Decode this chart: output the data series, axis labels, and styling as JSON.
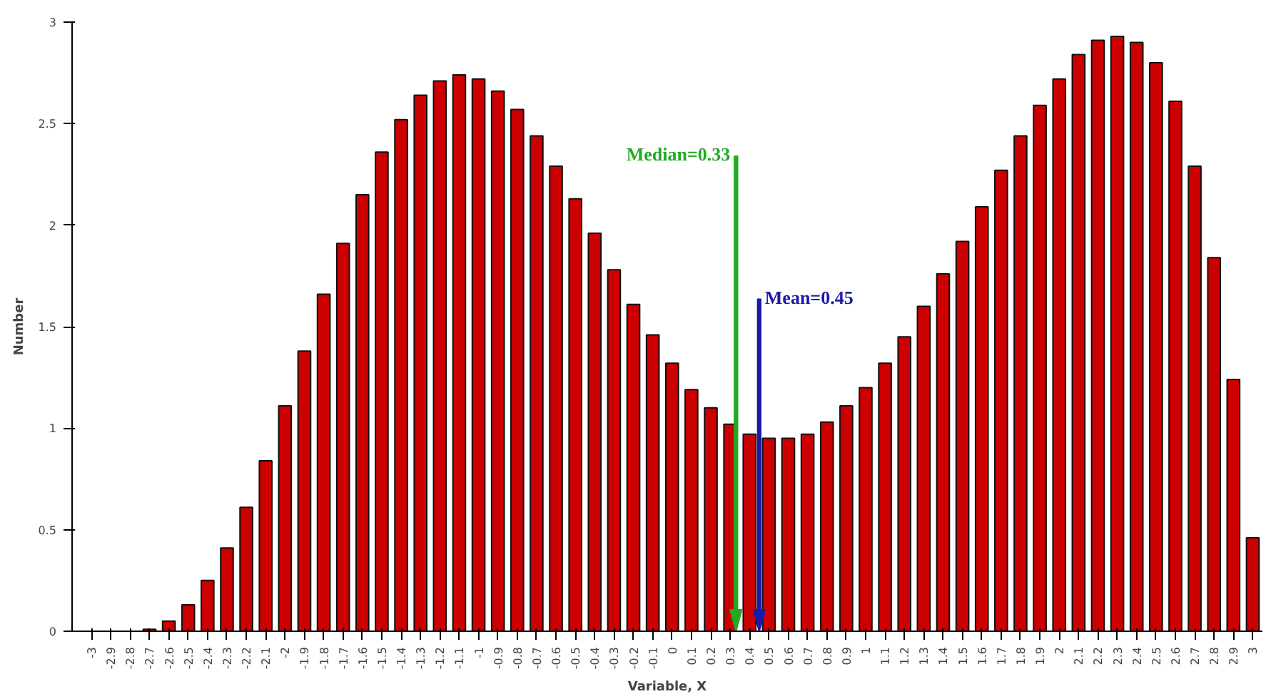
{
  "chart_data": {
    "type": "bar",
    "xlabel": "Variable, X",
    "ylabel": "Number",
    "x": [
      -3,
      -2.9,
      -2.8,
      -2.7,
      -2.6,
      -2.5,
      -2.4,
      -2.3,
      -2.2,
      -2.1,
      -2,
      -1.9,
      -1.8,
      -1.7,
      -1.6,
      -1.5,
      -1.4,
      -1.3,
      -1.2,
      -1.1,
      -1,
      -0.9,
      -0.8,
      -0.7,
      -0.6,
      -0.5,
      -0.4,
      -0.3,
      -0.2,
      -0.1,
      0,
      0.1,
      0.2,
      0.3,
      0.4,
      0.5,
      0.6,
      0.7,
      0.8,
      0.9,
      1,
      1.1,
      1.2,
      1.3,
      1.4,
      1.5,
      1.6,
      1.7,
      1.8,
      1.9,
      2,
      2.1,
      2.2,
      2.3,
      2.4,
      2.5,
      2.6,
      2.7,
      2.8,
      2.9,
      3
    ],
    "values": [
      0,
      0,
      0,
      0.01,
      0.05,
      0.13,
      0.25,
      0.41,
      0.61,
      0.84,
      1.11,
      1.38,
      1.66,
      1.91,
      2.15,
      2.36,
      2.52,
      2.64,
      2.71,
      2.74,
      2.72,
      2.66,
      2.57,
      2.44,
      2.29,
      2.13,
      1.96,
      1.78,
      1.61,
      1.46,
      1.32,
      1.19,
      1.1,
      1.02,
      0.97,
      0.95,
      0.95,
      0.97,
      1.03,
      1.11,
      1.2,
      1.32,
      1.45,
      1.6,
      1.76,
      1.92,
      2.09,
      2.27,
      2.44,
      2.59,
      2.72,
      2.84,
      2.91,
      2.93,
      2.9,
      2.8,
      2.61,
      2.29,
      1.84,
      1.24,
      0.46
    ],
    "color": "#cc0000",
    "xlim": [
      -3.1,
      3.05
    ],
    "xticks": [
      -3,
      -2.9,
      -2.8,
      -2.7,
      -2.6,
      -2.5,
      -2.4,
      -2.3,
      -2.2,
      -2.1,
      -2,
      -1.9,
      -1.8,
      -1.7,
      -1.6,
      -1.5,
      -1.4,
      -1.3,
      -1.2,
      -1.1,
      -1,
      -0.9,
      -0.8,
      -0.7,
      -0.6,
      -0.5,
      -0.4,
      -0.3,
      -0.2,
      -0.1,
      0,
      0.1,
      0.2,
      0.3,
      0.4,
      0.5,
      0.6,
      0.7,
      0.8,
      0.9,
      1,
      1.1,
      1.2,
      1.3,
      1.4,
      1.5,
      1.6,
      1.7,
      1.8,
      1.9,
      2,
      2.1,
      2.2,
      2.3,
      2.4,
      2.5,
      2.6,
      2.7,
      2.8,
      2.9,
      3
    ],
    "ylim": [
      0,
      3
    ],
    "yticks": [
      0,
      0.5,
      1,
      1.5,
      2,
      2.5,
      3
    ],
    "grid": false,
    "ref_lines": [
      {
        "axis": "x",
        "value": 0.33,
        "label": "Median=0.33",
        "color": "#22aa22"
      },
      {
        "axis": "x",
        "value": 0.45,
        "label": "Mean=0.45",
        "color": "#1a1aaa"
      }
    ]
  }
}
